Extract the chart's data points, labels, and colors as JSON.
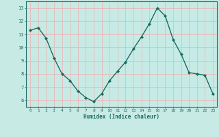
{
  "x": [
    0,
    1,
    2,
    3,
    4,
    5,
    6,
    7,
    8,
    9,
    10,
    11,
    12,
    13,
    14,
    15,
    16,
    17,
    18,
    19,
    20,
    21,
    22,
    23
  ],
  "y": [
    11.3,
    11.5,
    10.7,
    9.2,
    8.0,
    7.5,
    6.7,
    6.2,
    5.9,
    6.5,
    7.5,
    8.2,
    8.9,
    9.9,
    10.8,
    11.8,
    13.0,
    12.4,
    10.6,
    9.5,
    8.1,
    8.0,
    7.9,
    6.5
  ],
  "xlabel": "Humidex (Indice chaleur)",
  "ylim": [
    5.5,
    13.5
  ],
  "xlim": [
    -0.5,
    23.5
  ],
  "yticks": [
    6,
    7,
    8,
    9,
    10,
    11,
    12,
    13
  ],
  "xticks": [
    0,
    1,
    2,
    3,
    4,
    5,
    6,
    7,
    8,
    9,
    10,
    11,
    12,
    13,
    14,
    15,
    16,
    17,
    18,
    19,
    20,
    21,
    22,
    23
  ],
  "line_color": "#1a6b60",
  "marker_color": "#1a6b60",
  "bg_color": "#c8eae5",
  "grid_color": "#e8b8b8",
  "spine_color": "#1a6b60"
}
